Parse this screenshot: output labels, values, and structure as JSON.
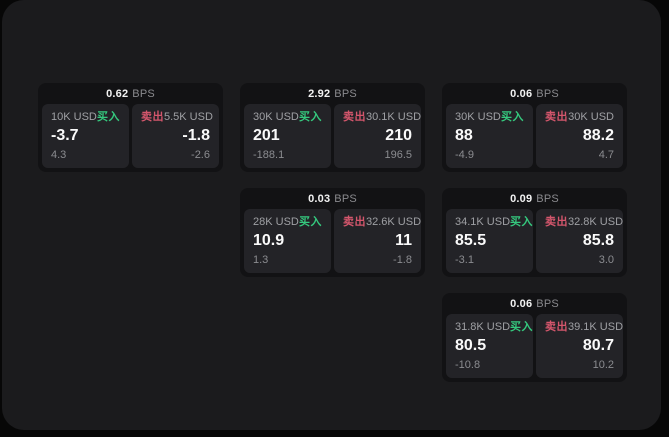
{
  "labels": {
    "buy": "买入",
    "sell": "卖出",
    "bps_suffix": "BPS"
  },
  "colors": {
    "page_bg": "#070707",
    "panel_bg": "#1b1b1d",
    "card_bg": "#121214",
    "tile_bg": "#232327",
    "buy_green": "#35c97e",
    "sell_red": "#d4566c"
  },
  "cards": [
    {
      "row": 1,
      "col": 1,
      "bps": "0.62",
      "buy": {
        "amount": "10K USD",
        "value": "-3.7",
        "delta": "4.3"
      },
      "sell": {
        "amount": "5.5K USD",
        "value": "-1.8",
        "delta": "-2.6"
      }
    },
    {
      "row": 1,
      "col": 2,
      "bps": "2.92",
      "buy": {
        "amount": "30K USD",
        "value": "201",
        "delta": "-188.1"
      },
      "sell": {
        "amount": "30.1K USD",
        "value": "210",
        "delta": "196.5"
      }
    },
    {
      "row": 1,
      "col": 3,
      "bps": "0.06",
      "buy": {
        "amount": "30K USD",
        "value": "88",
        "delta": "-4.9"
      },
      "sell": {
        "amount": "30K USD",
        "value": "88.2",
        "delta": "4.7"
      }
    },
    {
      "row": 2,
      "col": 2,
      "bps": "0.03",
      "buy": {
        "amount": "28K USD",
        "value": "10.9",
        "delta": "1.3"
      },
      "sell": {
        "amount": "32.6K USD",
        "value": "11",
        "delta": "-1.8"
      }
    },
    {
      "row": 2,
      "col": 3,
      "bps": "0.09",
      "buy": {
        "amount": "34.1K USD",
        "value": "85.5",
        "delta": "-3.1"
      },
      "sell": {
        "amount": "32.8K USD",
        "value": "85.8",
        "delta": "3.0"
      }
    },
    {
      "row": 3,
      "col": 3,
      "bps": "0.06",
      "buy": {
        "amount": "31.8K USD",
        "value": "80.5",
        "delta": "-10.8"
      },
      "sell": {
        "amount": "39.1K USD",
        "value": "80.7",
        "delta": "10.2"
      }
    }
  ]
}
